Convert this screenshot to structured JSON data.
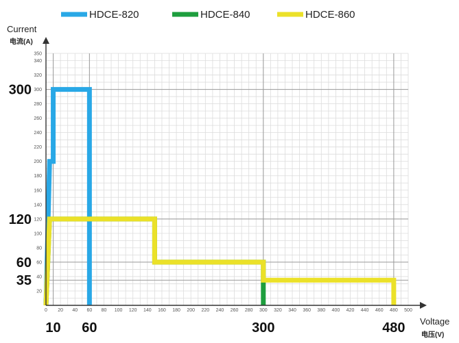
{
  "chart_data": {
    "type": "line",
    "title": "",
    "xlabel": "Voltage",
    "xlabel_sub": "电压(V)",
    "ylabel": "Current",
    "ylabel_sub": "电流(A)",
    "xlim": [
      0,
      500
    ],
    "ylim": [
      0,
      350
    ],
    "x_ticks": [
      0,
      20,
      40,
      60,
      80,
      100,
      120,
      140,
      160,
      180,
      200,
      220,
      240,
      260,
      280,
      300,
      320,
      340,
      360,
      380,
      400,
      420,
      440,
      460,
      480,
      500
    ],
    "y_ticks": [
      20,
      40,
      60,
      80,
      100,
      120,
      140,
      160,
      180,
      200,
      220,
      240,
      260,
      280,
      300,
      320,
      340,
      350
    ],
    "x_highlight": [
      10,
      60,
      300,
      480
    ],
    "y_highlight": [
      35,
      60,
      120,
      300
    ],
    "grid": true,
    "legend_position": "top",
    "series": [
      {
        "name": "HDCE-820",
        "color": "#29a8e6",
        "x": [
          0,
          5,
          10,
          10,
          15,
          60,
          60
        ],
        "y": [
          0,
          200,
          200,
          300,
          300,
          300,
          0
        ]
      },
      {
        "name": "HDCE-840",
        "color": "#1e9e3e",
        "x": [
          0,
          5,
          150,
          150,
          300,
          300
        ],
        "y": [
          0,
          120,
          120,
          60,
          60,
          0
        ]
      },
      {
        "name": "HDCE-860",
        "color": "#ebe129",
        "x": [
          0,
          5,
          150,
          150,
          300,
          300,
          480,
          480
        ],
        "y": [
          0,
          120,
          120,
          60,
          60,
          35,
          35,
          0
        ]
      }
    ]
  }
}
